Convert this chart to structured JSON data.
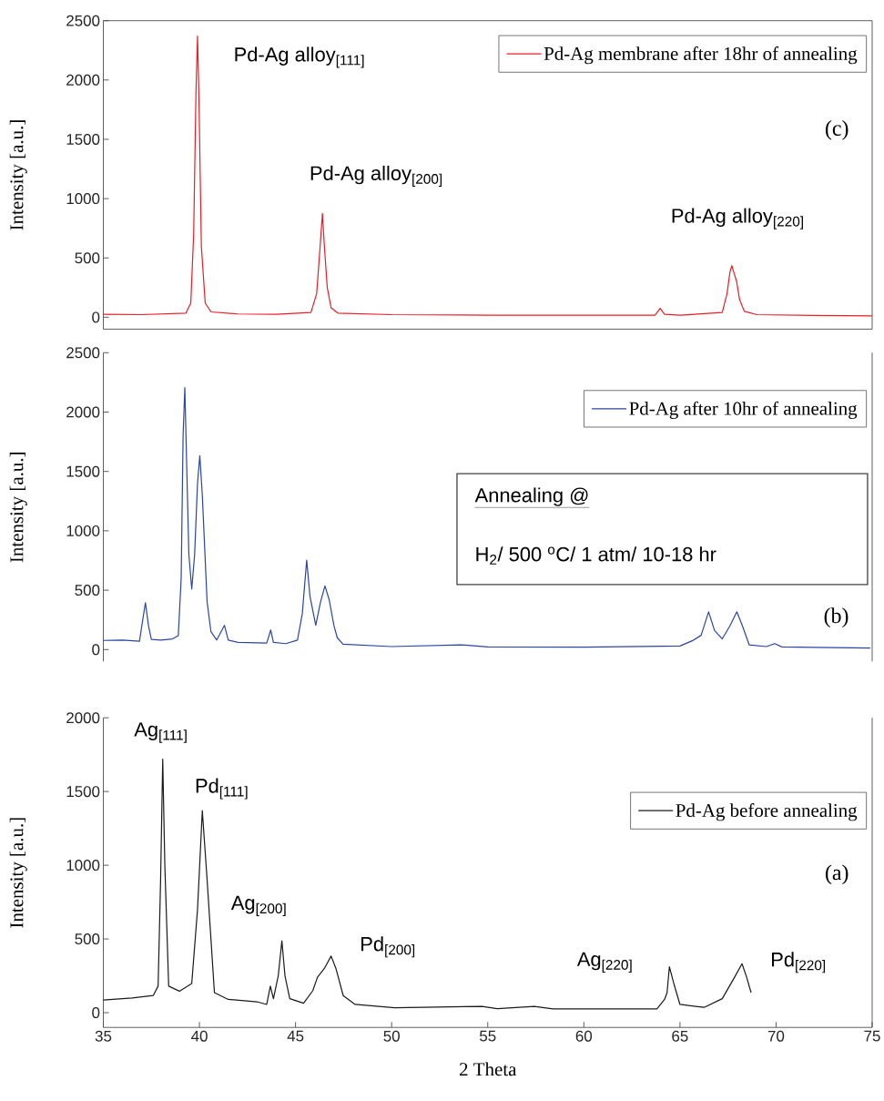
{
  "chart_data": [
    {
      "type": "line",
      "xlim": [
        35,
        75
      ],
      "ylim": [
        -100,
        2500
      ],
      "yticks": [
        0,
        500,
        1000,
        1500,
        2000,
        2500
      ],
      "ylabel": "Intensity [a.u.]",
      "tick_labels": "y",
      "legend": "top right",
      "series": [
        {
          "name": "Pd-Ag membrane after 18hr of annealing",
          "color": "#ee1c25",
          "x": [
            35,
            37,
            39.3,
            39.55,
            39.7,
            39.82,
            39.9,
            39.98,
            40.1,
            40.3,
            40.6,
            42,
            44,
            45.8,
            46.1,
            46.28,
            46.4,
            46.5,
            46.65,
            46.85,
            47.2,
            50,
            55,
            60,
            63.7,
            63.97,
            64.2,
            65,
            67.2,
            67.45,
            67.6,
            67.7,
            67.8,
            67.95,
            68.1,
            68.35,
            69,
            72,
            75
          ],
          "values": [
            25,
            22,
            35,
            120,
            700,
            1900,
            2370,
            1800,
            600,
            120,
            45,
            28,
            25,
            40,
            200,
            600,
            875,
            600,
            250,
            80,
            35,
            22,
            18,
            17,
            17,
            75,
            25,
            17,
            40,
            200,
            380,
            435,
            380,
            300,
            150,
            50,
            22,
            15,
            12
          ]
        }
      ],
      "annotations": [
        "(c)",
        "Pd-Ag alloy$_{[111]}$",
        "Pd-Ag alloy$_{[200]}$",
        "Pd-Ag alloy$_{[220]}$"
      ]
    },
    {
      "type": "line",
      "xlim": [
        35,
        75
      ],
      "ylim": [
        -100,
        2500
      ],
      "yticks": [
        0,
        500,
        1000,
        1500,
        2000,
        2500
      ],
      "ylabel": "Intensity [a.u.]",
      "tick_labels": "y",
      "legend": "top right",
      "series": [
        {
          "name": "Pd-Ag after 10hr of annealing",
          "color": "#2b45a6",
          "x": [
            35,
            36,
            36.88,
            37.05,
            37.19,
            37.35,
            37.5,
            38,
            38.6,
            38.9,
            39.05,
            39.15,
            39.24,
            39.33,
            39.45,
            39.6,
            39.75,
            39.9,
            40.02,
            40.15,
            40.4,
            40.6,
            40.9,
            41.3,
            41.5,
            42,
            43.5,
            43.71,
            43.85,
            44.5,
            45.1,
            45.35,
            45.58,
            45.75,
            46.05,
            46.3,
            46.53,
            46.75,
            47.0,
            47.17,
            47.47,
            50,
            53.6,
            55,
            60,
            65,
            65.69,
            66.1,
            66.49,
            66.8,
            67.2,
            67.6,
            67.96,
            68.25,
            68.6,
            69.5,
            69.93,
            70.3,
            72,
            74.9
          ],
          "values": [
            77,
            80,
            70,
            250,
            395,
            200,
            85,
            80,
            90,
            117,
            600,
            1800,
            2207,
            1600,
            800,
            510,
            800,
            1400,
            1633,
            1300,
            400,
            150,
            80,
            204,
            80,
            60,
            55,
            165,
            60,
            50,
            80,
            300,
            753,
            450,
            204,
            400,
            536,
            420,
            200,
            100,
            45,
            25,
            40,
            22,
            20,
            30,
            78,
            120,
            318,
            160,
            90,
            200,
            318,
            200,
            40,
            25,
            50,
            22,
            18,
            12
          ]
        }
      ],
      "annotations": [
        "(b)",
        "Annealing @",
        "H$_{2}$/ 500 $^{o}$C/ 1 atm/ 10-18 hr"
      ]
    },
    {
      "type": "line",
      "xlim": [
        35,
        75
      ],
      "ylim": [
        -100,
        2000
      ],
      "xticks": [
        35,
        40,
        45,
        50,
        55,
        60,
        65,
        70,
        75
      ],
      "yticks": [
        0,
        500,
        1000,
        1500,
        2000
      ],
      "xlabel": "2 Theta",
      "ylabel": "Intensity [a.u.]",
      "legend": "right",
      "series": [
        {
          "name": "Pd-Ag before annealing",
          "color": "#1a1a1a",
          "x": [
            35,
            36.5,
            37.6,
            37.85,
            37.98,
            38.09,
            38.2,
            38.4,
            38.96,
            39.6,
            39.9,
            40.15,
            40.4,
            40.78,
            41.5,
            43,
            43.5,
            43.69,
            43.85,
            44.1,
            44.29,
            44.45,
            44.7,
            45.42,
            45.9,
            46.14,
            46.5,
            46.85,
            47.1,
            47.48,
            48.1,
            50.16,
            54.7,
            55.5,
            57.42,
            58.4,
            63.8,
            64.2,
            64.33,
            64.45,
            64.68,
            65.0,
            66.26,
            67.2,
            67.84,
            68.23,
            68.47,
            68.7
          ],
          "values": [
            86,
            100,
            117,
            180,
            900,
            1720,
            1000,
            180,
            146,
            198,
            700,
            1370,
            900,
            136,
            90,
            74,
            56,
            180,
            95,
            250,
            487,
            250,
            95,
            64,
            150,
            240,
            300,
            384,
            300,
            116,
            56,
            33,
            43,
            27,
            43,
            26,
            26,
            90,
            136,
            311,
            198,
            56,
            36,
            95,
            240,
            332,
            240,
            136
          ]
        }
      ],
      "annotations": [
        "(a)",
        "Ag$_{[111]}$",
        "Pd$_{[111]}$",
        "Ag$_{[200]}$",
        "Pd$_{[200]}$",
        "Ag$_{[220]}$",
        "Pd$_{[220]}$"
      ]
    }
  ]
}
